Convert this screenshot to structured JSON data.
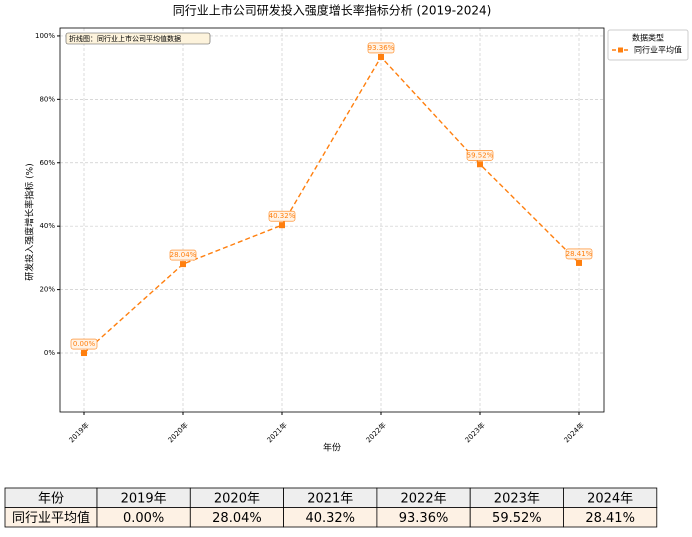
{
  "chart_data": {
    "type": "line",
    "title": "同行业上市公司研发投入强度增长率指标分析 (2019-2024)",
    "x_label": "年份",
    "y_label": "研发投入强度增长率指标 (%)",
    "annotation": "折线图：同行业上市公司平均值数据",
    "legend_title": "数据类型",
    "legend_position": "upper right outside",
    "grid": true,
    "categories": [
      "2019年",
      "2020年",
      "2021年",
      "2022年",
      "2023年",
      "2024年"
    ],
    "series": [
      {
        "name": "同行业平均值",
        "color": "#ff7f0e",
        "values": [
          0.0,
          28.04,
          40.32,
          93.36,
          59.52,
          28.41
        ],
        "value_labels": [
          "0.00%",
          "28.04%",
          "40.32%",
          "93.36%",
          "59.52%",
          "28.41%"
        ]
      }
    ],
    "ylim": [
      -18.6,
      102.5
    ],
    "yticks": [
      {
        "value": 0,
        "label": "0%"
      },
      {
        "value": 20,
        "label": "20%"
      },
      {
        "value": 40,
        "label": "40%"
      },
      {
        "value": 60,
        "label": "60%"
      },
      {
        "value": 80,
        "label": "80%"
      },
      {
        "value": 100,
        "label": "100%"
      }
    ]
  },
  "table": {
    "header_label": "年份",
    "row_label": "同行业平均值"
  }
}
